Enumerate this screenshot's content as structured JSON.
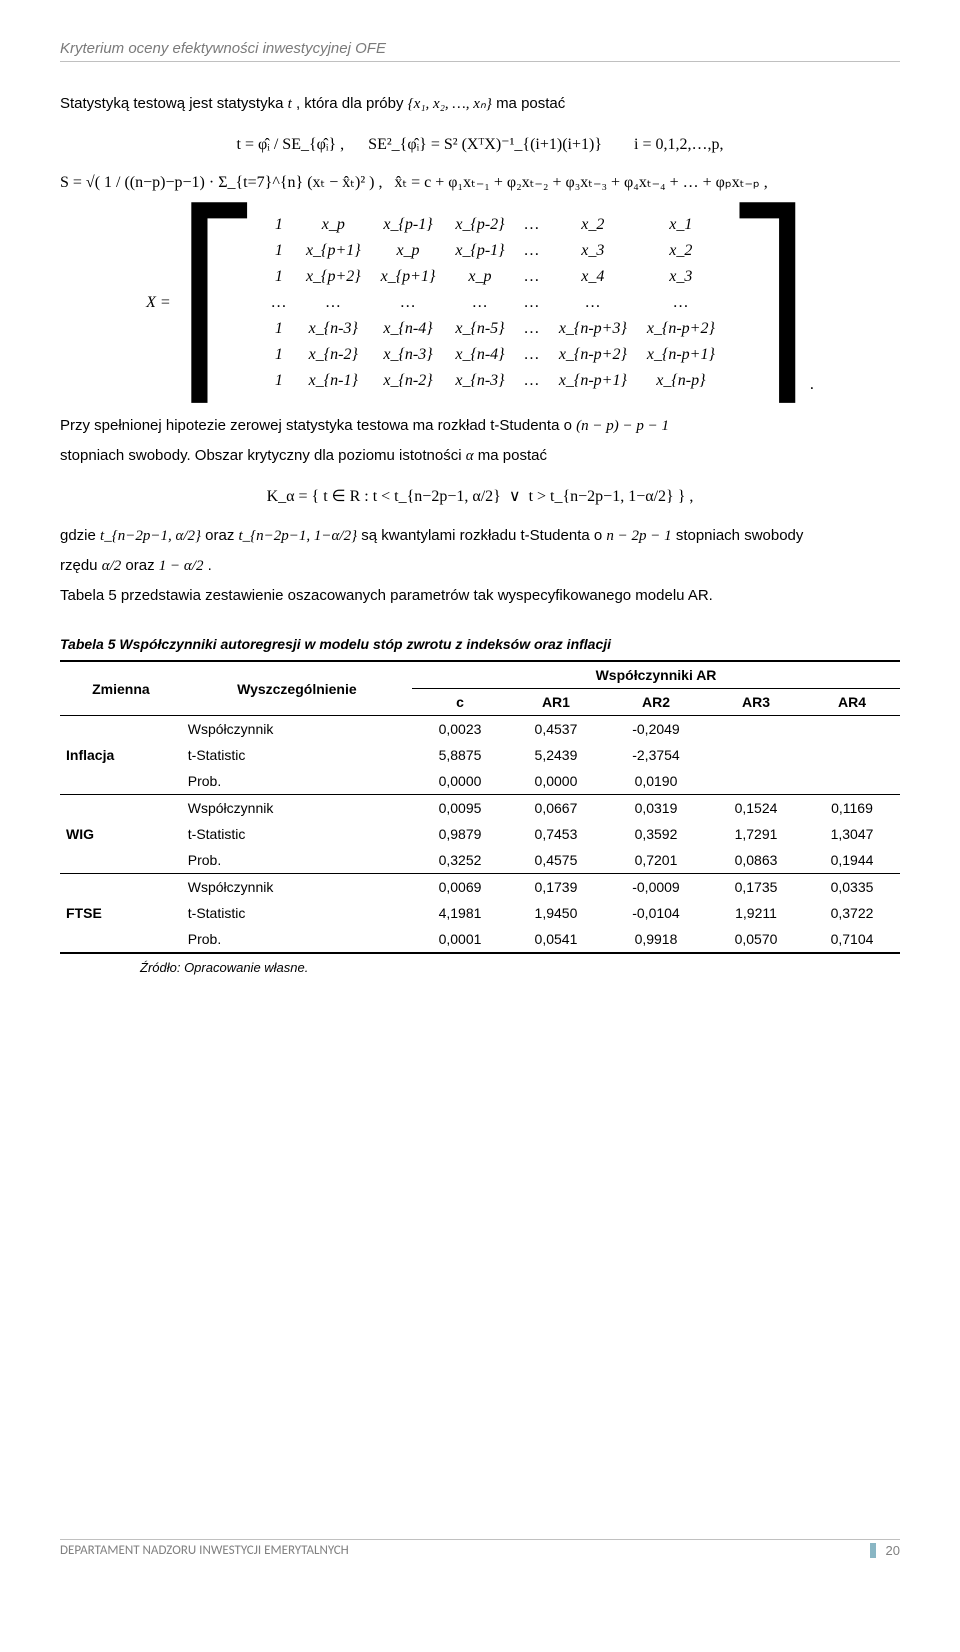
{
  "header": {
    "title": "Kryterium oceny efektywności inwestycyjnej OFE"
  },
  "intro": {
    "line1_pre": "Statystyką testową jest statystyka ",
    "line1_mid": "t",
    "line1_after": ", która dla próby ",
    "line1_set": "{x₁, x₂, …, xₙ}",
    "line1_end": " ma postać"
  },
  "formulas": {
    "t_stat": "t = φ̂ᵢ / SE_{φ̂ᵢ} ,      SE²_{φ̂ᵢ} = S² (XᵀX)⁻¹_{(i+1)(i+1)}        i = 0,1,2,…,p,",
    "s_def": "S = √( 1 / ((n−p)−p−1) · Σ_{t=7}^{n} (xₜ − x̂ₜ)² ) ,   x̂ₜ = c + φ₁xₜ₋₁ + φ₂xₜ₋₂ + φ₃xₜ₋₃ + φ₄xₜ₋₄ + … + φₚxₜ₋ₚ ,",
    "matrix_rows": [
      [
        "1",
        "x_p",
        "x_{p-1}",
        "x_{p-2}",
        "…",
        "x_2",
        "x_1"
      ],
      [
        "1",
        "x_{p+1}",
        "x_p",
        "x_{p-1}",
        "…",
        "x_3",
        "x_2"
      ],
      [
        "1",
        "x_{p+2}",
        "x_{p+1}",
        "x_p",
        "…",
        "x_4",
        "x_3"
      ],
      [
        "…",
        "…",
        "…",
        "…",
        "…",
        "…",
        "…"
      ],
      [
        "1",
        "x_{n-3}",
        "x_{n-4}",
        "x_{n-5}",
        "…",
        "x_{n-p+3}",
        "x_{n-p+2}"
      ],
      [
        "1",
        "x_{n-2}",
        "x_{n-3}",
        "x_{n-4}",
        "…",
        "x_{n-p+2}",
        "x_{n-p+1}"
      ],
      [
        "1",
        "x_{n-1}",
        "x_{n-2}",
        "x_{n-3}",
        "…",
        "x_{n-p+1}",
        "x_{n-p}"
      ]
    ],
    "k_alpha": "K_α = { t ∈ R : t < t_{n−2p−1, α/2}  ∨  t > t_{n−2p−1, 1−α/2} } ,",
    "matrix_prefix": "X ="
  },
  "para2": {
    "pre": "Przy spełnionej hipotezie zerowej statystyka testowa ma rozkład t-Studenta o ",
    "math": "(n − p) − p − 1",
    "post1": "stopniach swobody. Obszar krytyczny dla poziomu istotności ",
    "alpha": "α",
    "post2": " ma postać"
  },
  "para3": {
    "line1_pre": "gdzie ",
    "q1": "t_{n−2p−1, α/2}",
    "mid1": " oraz ",
    "q2": "t_{n−2p−1, 1−α/2}",
    "mid2": " są kwantylami rozkładu t-Studenta o ",
    "np": "n − 2p − 1",
    "end1": " stopniach swobody",
    "line2_pre": "rzędu ",
    "r1": "α/2",
    "line2_mid": " oraz ",
    "r2": "1 − α/2",
    "line2_end": " ."
  },
  "para4": "Tabela 5 przedstawia zestawienie oszacowanych parametrów tak wyspecyfikowanego modelu AR.",
  "table": {
    "caption": "Tabela 5 Współczynniki autoregresji w modelu stóp zwrotu z indeksów oraz inflacji",
    "head_main": [
      "Zmienna",
      "Wyszczególnienie",
      "Współczynniki AR"
    ],
    "head_sub": [
      "c",
      "AR1",
      "AR2",
      "AR3",
      "AR4"
    ],
    "groups": [
      {
        "name": "Inflacja",
        "rows": [
          {
            "label": "Współczynnik",
            "vals": [
              "0,0023",
              "0,4537",
              "-0,2049",
              "",
              ""
            ]
          },
          {
            "label": "t-Statistic",
            "vals": [
              "5,8875",
              "5,2439",
              "-2,3754",
              "",
              ""
            ]
          },
          {
            "label": "Prob.",
            "vals": [
              "0,0000",
              "0,0000",
              "0,0190",
              "",
              ""
            ]
          }
        ]
      },
      {
        "name": "WIG",
        "rows": [
          {
            "label": "Współczynnik",
            "vals": [
              "0,0095",
              "0,0667",
              "0,0319",
              "0,1524",
              "0,1169"
            ]
          },
          {
            "label": "t-Statistic",
            "vals": [
              "0,9879",
              "0,7453",
              "0,3592",
              "1,7291",
              "1,3047"
            ]
          },
          {
            "label": "Prob.",
            "vals": [
              "0,3252",
              "0,4575",
              "0,7201",
              "0,0863",
              "0,1944"
            ]
          }
        ]
      },
      {
        "name": "FTSE",
        "rows": [
          {
            "label": "Współczynnik",
            "vals": [
              "0,0069",
              "0,1739",
              "-0,0009",
              "0,1735",
              "0,0335"
            ]
          },
          {
            "label": "t-Statistic",
            "vals": [
              "4,1981",
              "1,9450",
              "-0,0104",
              "1,9211",
              "0,3722"
            ]
          },
          {
            "label": "Prob.",
            "vals": [
              "0,0001",
              "0,0541",
              "0,9918",
              "0,0570",
              "0,7104"
            ]
          }
        ]
      }
    ],
    "source": "Źródło: Opracowanie własne."
  },
  "footer": {
    "department": "DEPARTAMENT NADZORU INWESTYCJI EMERYTALNYCH",
    "page": "20",
    "accent_color": "#89b6c4"
  },
  "colors": {
    "text": "#000000",
    "muted": "#7a7a7a",
    "divider": "#c0c0c0",
    "background": "#ffffff"
  },
  "fonts": {
    "body_family": "Verdana",
    "body_size_pt": 11,
    "math_family": "Cambria Math",
    "caption_size_pt": 10
  }
}
